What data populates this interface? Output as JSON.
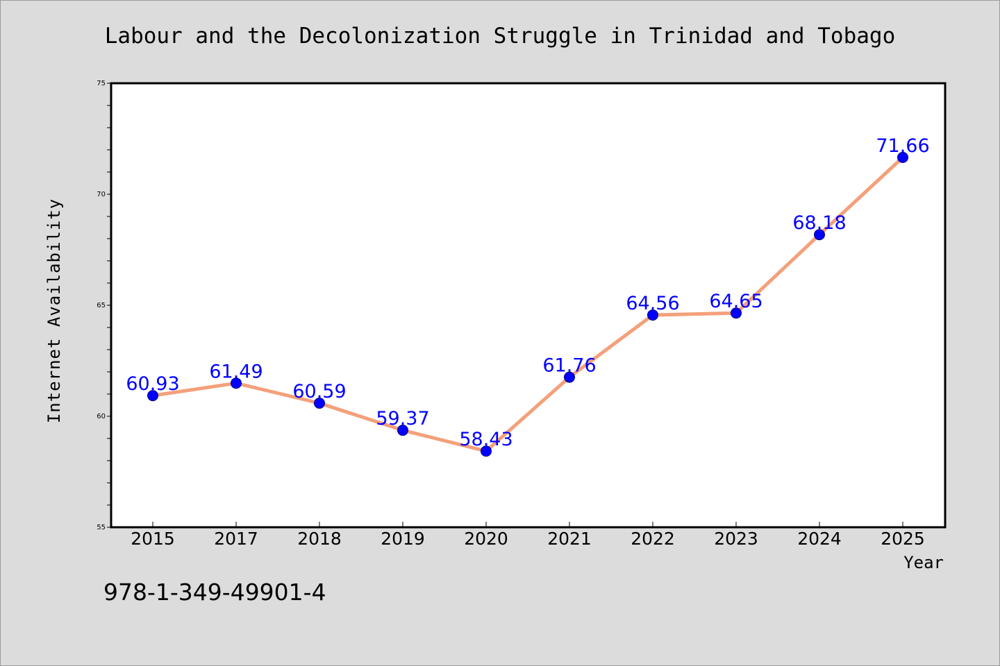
{
  "chart_data": {
    "type": "line",
    "title": "Labour and the Decolonization Struggle in Trinidad and Tobago",
    "xlabel": "Year",
    "ylabel": "Internet Availability",
    "categories": [
      "2015",
      "2017",
      "2018",
      "2019",
      "2020",
      "2021",
      "2022",
      "2023",
      "2024",
      "2025"
    ],
    "series": [
      {
        "values": [
          60.93,
          61.49,
          60.59,
          59.37,
          58.43,
          61.76,
          64.56,
          64.65,
          68.18,
          71.66
        ],
        "labels": [
          "60.93",
          "61.49",
          "60.59",
          "59.37",
          "58.43",
          "61.76",
          "64.56",
          "64.65",
          "68.18",
          "71.66"
        ],
        "line_color": "#f4a07a",
        "marker_color": "#0000ff"
      }
    ],
    "ylim": [
      55,
      75
    ],
    "yticks": [
      "55",
      "60",
      "65",
      "70",
      "75"
    ],
    "grid": false,
    "legend": "none"
  },
  "footer_text": "978-1-349-49901-4"
}
